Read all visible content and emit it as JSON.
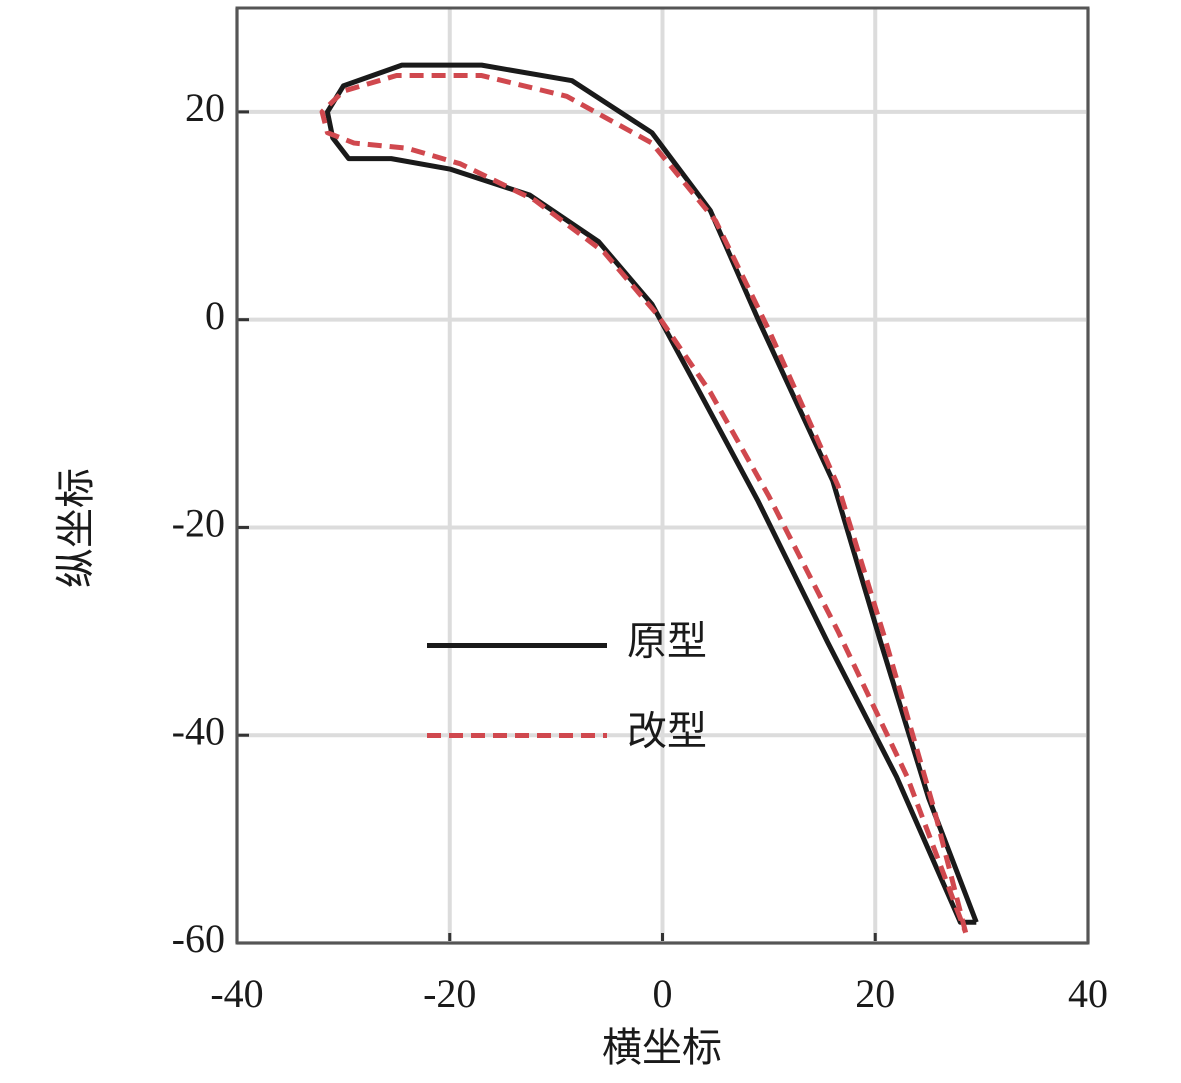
{
  "chart_data": {
    "type": "line",
    "xlabel": "横坐标",
    "ylabel": "纵坐标",
    "xlim": [
      -40,
      40
    ],
    "xticks": [
      -40,
      -20,
      0,
      20,
      40
    ],
    "ylim": [
      -60,
      30
    ],
    "yticks": [
      -60,
      -40,
      -20,
      0,
      20
    ],
    "grid": true,
    "legend": "center",
    "series": [
      {
        "name": "原型",
        "color": "#1a1a1a",
        "style": "solid",
        "x": [
          29.5,
          25,
          20.5,
          16,
          9,
          4.5,
          -1,
          -8.5,
          -17,
          -24.5,
          -30,
          -31.5,
          -31,
          -29.5,
          -25.5,
          -20,
          -12.5,
          -6,
          -1,
          3.5,
          9,
          15.5,
          22,
          28,
          29.5
        ],
        "values": [
          -58,
          -46,
          -31,
          -15.5,
          0,
          10.5,
          18,
          23,
          24.5,
          24.5,
          22.5,
          20,
          17.5,
          15.5,
          15.5,
          14.5,
          12,
          7.5,
          1.5,
          -7,
          -17.5,
          -31,
          -44,
          -58,
          -58
        ]
      },
      {
        "name": "改型",
        "color": "#d0484e",
        "style": "dashed",
        "x": [
          28.5,
          25.5,
          21,
          16.5,
          10,
          5,
          -1,
          -9,
          -17,
          -25,
          -30,
          -32,
          -31.5,
          -29,
          -24,
          -19,
          -12,
          -5.5,
          -0.5,
          4.5,
          10,
          16.5,
          23,
          28.5
        ],
        "values": [
          -59,
          -47,
          -31,
          -16,
          -1,
          9.5,
          17,
          21.5,
          23.5,
          23.5,
          22,
          20,
          18,
          17,
          16.5,
          15,
          11.5,
          6.5,
          0.5,
          -7,
          -17,
          -30,
          -44,
          -59
        ]
      }
    ]
  }
}
